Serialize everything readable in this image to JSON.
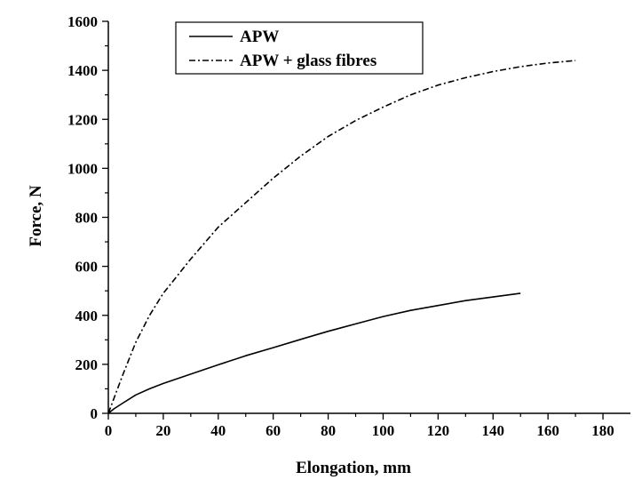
{
  "chart_data": {
    "type": "line",
    "title": "",
    "xlabel": "Elongation, mm",
    "ylabel": "Force, N",
    "xlim": [
      0,
      190
    ],
    "ylim": [
      0,
      1600
    ],
    "x_ticks": [
      0,
      20,
      40,
      60,
      80,
      100,
      120,
      140,
      160,
      180
    ],
    "y_ticks": [
      0,
      200,
      400,
      600,
      800,
      1000,
      1200,
      1400,
      1600
    ],
    "x_tick_labels": [
      "0",
      "20",
      "40",
      "60",
      "80",
      "100",
      "120",
      "140",
      "160",
      "180"
    ],
    "y_tick_labels": [
      "0",
      "200",
      "400",
      "600",
      "800",
      "1000",
      "1200",
      "1400",
      "1600"
    ],
    "grid": false,
    "legend_position": "top-left",
    "series": [
      {
        "name": "APW",
        "line_style": "solid",
        "color": "#000000",
        "points": [
          [
            0,
            0
          ],
          [
            2,
            18
          ],
          [
            5,
            40
          ],
          [
            10,
            75
          ],
          [
            15,
            100
          ],
          [
            20,
            122
          ],
          [
            30,
            160
          ],
          [
            40,
            198
          ],
          [
            50,
            235
          ],
          [
            60,
            268
          ],
          [
            70,
            302
          ],
          [
            80,
            335
          ],
          [
            90,
            365
          ],
          [
            100,
            395
          ],
          [
            110,
            420
          ],
          [
            120,
            440
          ],
          [
            130,
            460
          ],
          [
            140,
            475
          ],
          [
            150,
            490
          ]
        ]
      },
      {
        "name": "APW + glass fibres",
        "line_style": "dash-dot",
        "color": "#000000",
        "points": [
          [
            0,
            0
          ],
          [
            2,
            60
          ],
          [
            5,
            150
          ],
          [
            10,
            290
          ],
          [
            15,
            400
          ],
          [
            20,
            490
          ],
          [
            30,
            630
          ],
          [
            40,
            760
          ],
          [
            50,
            860
          ],
          [
            60,
            960
          ],
          [
            70,
            1050
          ],
          [
            80,
            1130
          ],
          [
            90,
            1195
          ],
          [
            100,
            1250
          ],
          [
            110,
            1300
          ],
          [
            120,
            1340
          ],
          [
            130,
            1370
          ],
          [
            140,
            1395
          ],
          [
            150,
            1415
          ],
          [
            160,
            1430
          ],
          [
            170,
            1440
          ]
        ]
      }
    ]
  }
}
